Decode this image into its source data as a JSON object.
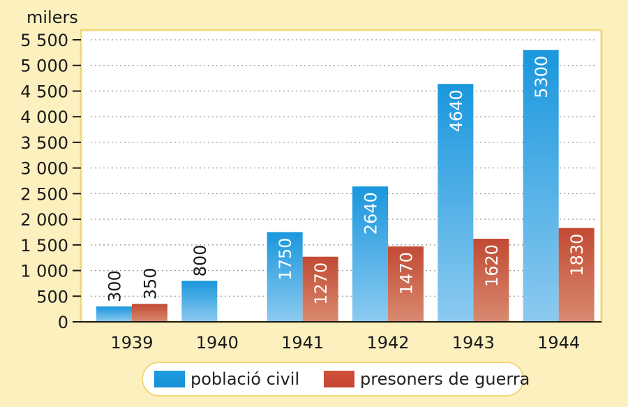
{
  "chart_data": {
    "type": "bar",
    "ylabel": "milers",
    "categories": [
      "1939",
      "1940",
      "1941",
      "1942",
      "1943",
      "1944"
    ],
    "series": [
      {
        "name": "població civil",
        "values": [
          300,
          800,
          1750,
          2640,
          4640,
          5300
        ],
        "labels": [
          "300",
          "800",
          "1750",
          "2640",
          "4640",
          "5300"
        ],
        "color": "#1a97dd"
      },
      {
        "name": "presoners de guerra",
        "values": [
          350,
          null,
          1270,
          1470,
          1620,
          1830
        ],
        "labels": [
          "350",
          "",
          "1270",
          "1470",
          "1620",
          "1830"
        ],
        "color": "#c9503a"
      }
    ],
    "ylim": [
      0,
      5500
    ],
    "yticks": [
      0,
      500,
      1000,
      1500,
      2000,
      2500,
      3000,
      3500,
      4000,
      4500,
      5000,
      5500
    ],
    "ytick_labels": [
      "0",
      "500",
      "1 000",
      "1 500",
      "2 000",
      "2 500",
      "3 000",
      "3 500",
      "4 000",
      "4 500",
      "5 000",
      "5 500"
    ],
    "grid": true,
    "legend": "bottom"
  },
  "colors": {
    "background": "#fcf0bf",
    "plot_area": "#ffffff",
    "frame": "#f1d878",
    "civil_top": "#1a97dd",
    "civil_bottom": "#8ccaf0",
    "pow_top": "#c24a33",
    "pow_bottom": "#d88a70"
  }
}
